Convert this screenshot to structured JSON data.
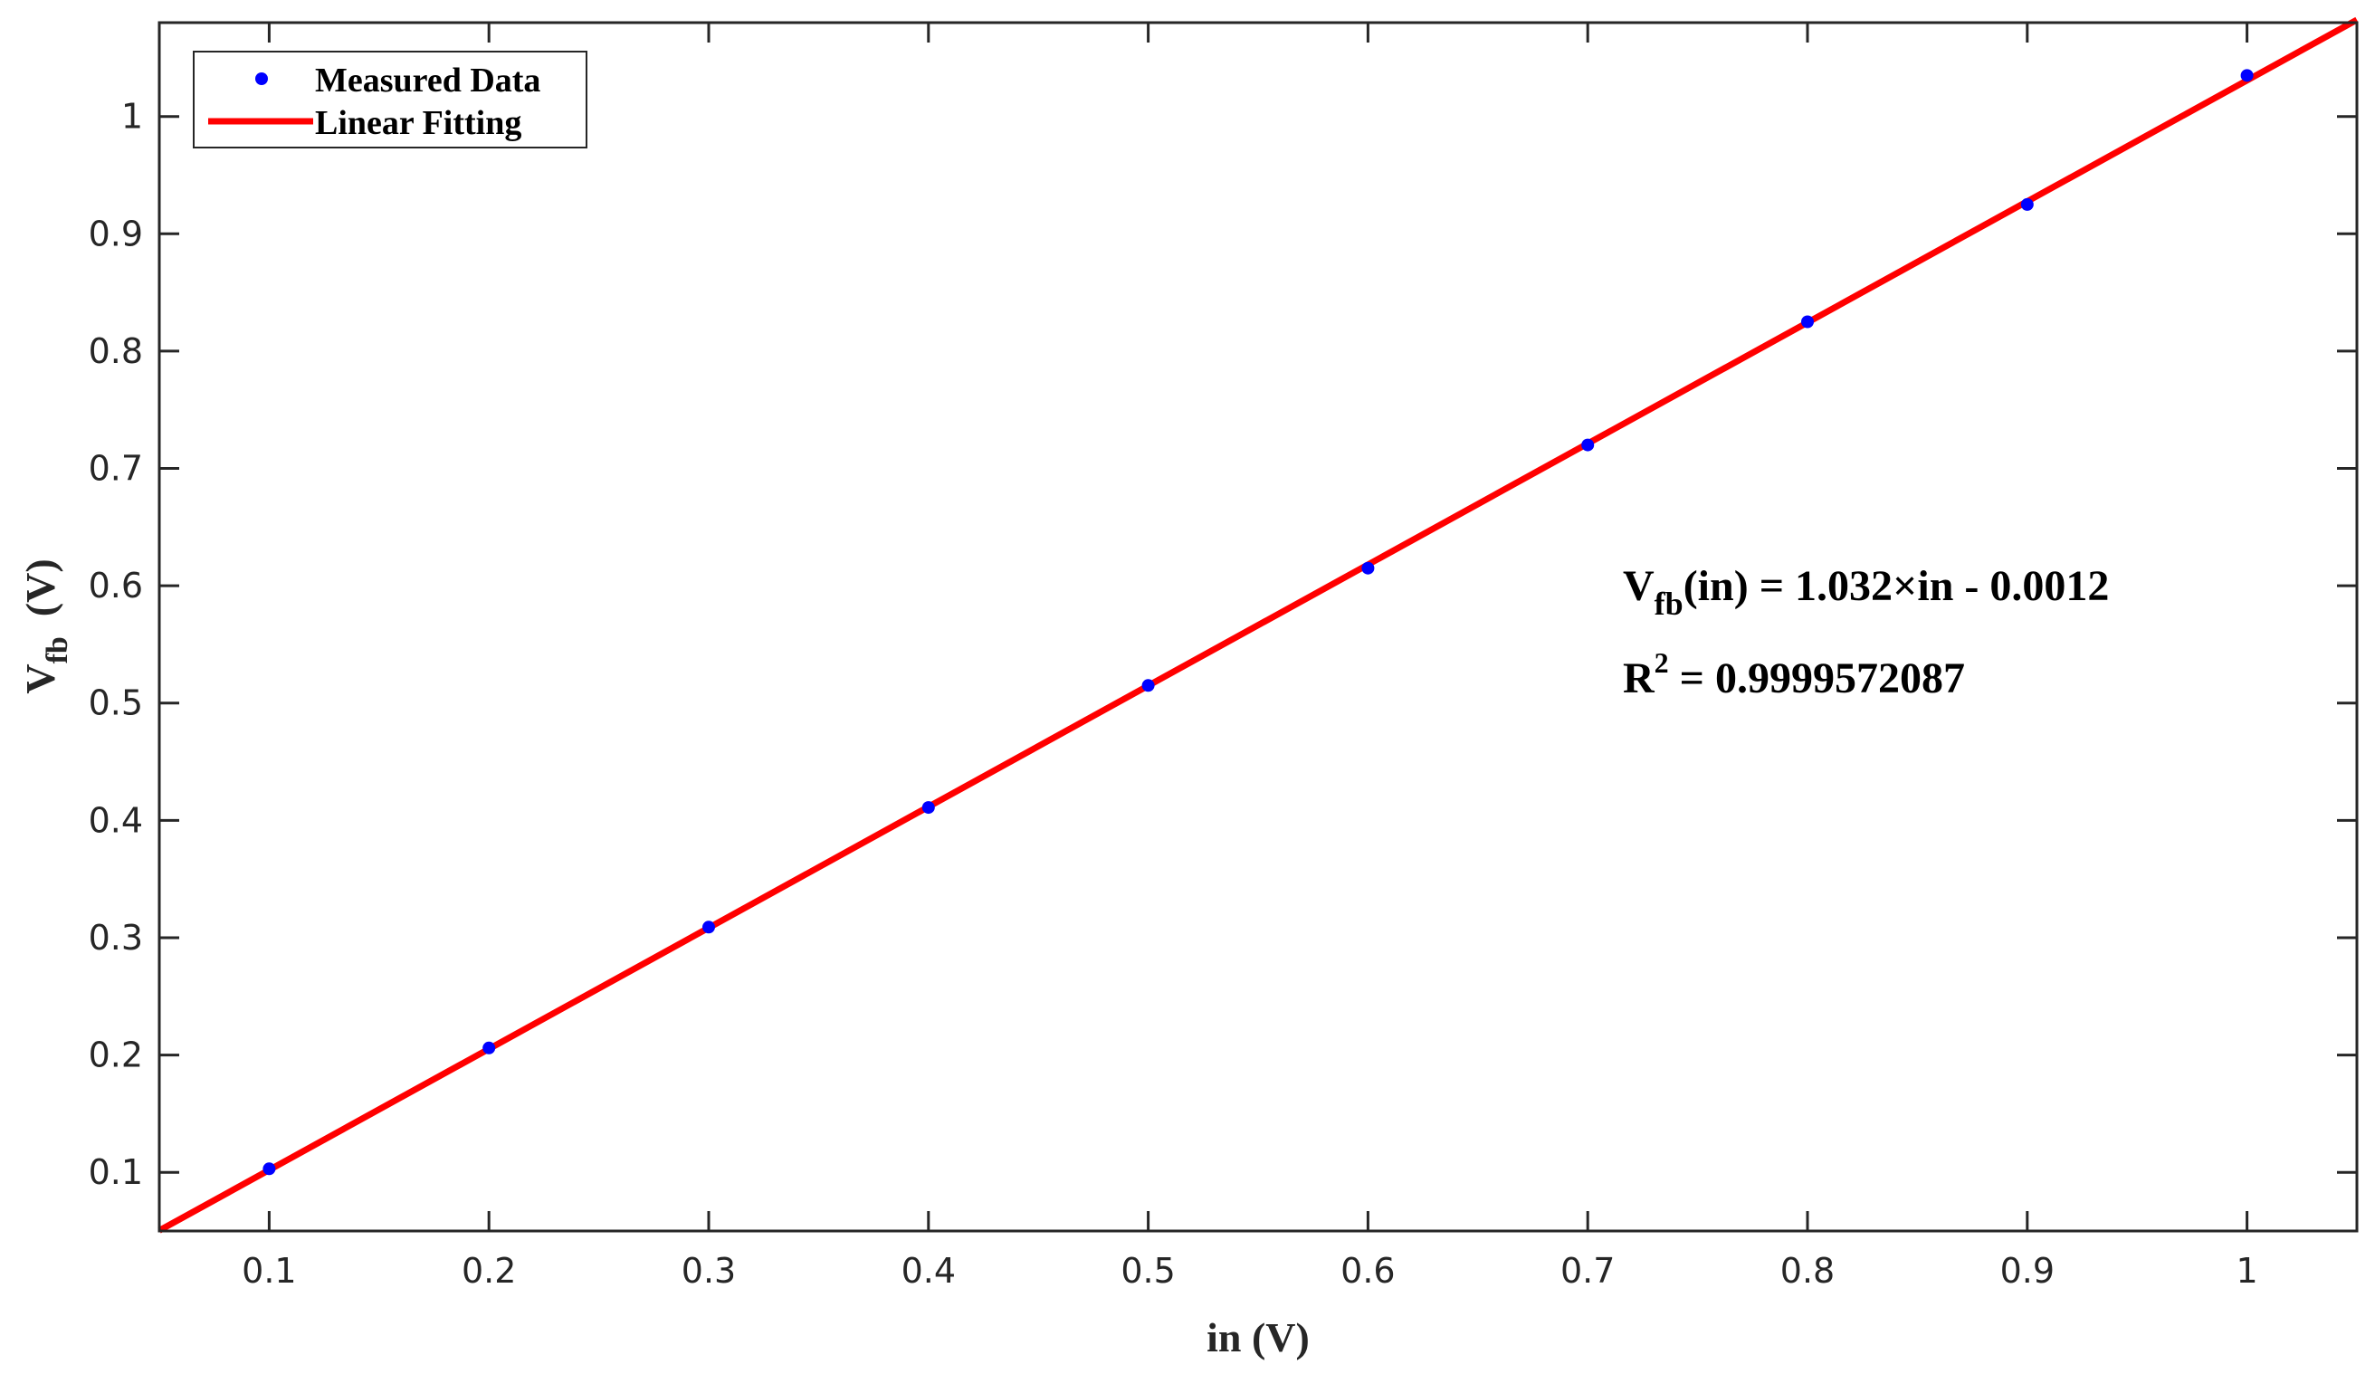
{
  "chart_data": {
    "type": "scatter",
    "xlabel": "in (V)",
    "ylabel": {
      "main": "V",
      "sub": "fb",
      "unit": "(V)"
    },
    "xlim": [
      0.05,
      1.05
    ],
    "ylim": [
      0.05,
      1.08
    ],
    "xticks": [
      0.1,
      0.2,
      0.3,
      0.4,
      0.5,
      0.6,
      0.7,
      0.8,
      0.9,
      1.0
    ],
    "xtick_labels": [
      "0.1",
      "0.2",
      "0.3",
      "0.4",
      "0.5",
      "0.6",
      "0.7",
      "0.8",
      "0.9",
      "1"
    ],
    "yticks": [
      0.1,
      0.2,
      0.3,
      0.4,
      0.5,
      0.6,
      0.7,
      0.8,
      0.9,
      1.0
    ],
    "ytick_labels": [
      "0.1",
      "0.2",
      "0.3",
      "0.4",
      "0.5",
      "0.6",
      "0.7",
      "0.8",
      "0.9",
      "1"
    ],
    "grid": false,
    "legend_position": "top-left",
    "series": [
      {
        "name": "Measured Data",
        "kind": "scatter",
        "color": "#0000ff",
        "x": [
          0.1,
          0.2,
          0.3,
          0.4,
          0.5,
          0.6,
          0.7,
          0.8,
          0.9,
          1.0
        ],
        "y": [
          0.103,
          0.206,
          0.309,
          0.411,
          0.515,
          0.615,
          0.72,
          0.825,
          0.925,
          1.035
        ]
      },
      {
        "name": "Linear Fitting",
        "kind": "line",
        "color": "#ff0000",
        "slope": 1.032,
        "intercept": -0.0012
      }
    ],
    "annotations": {
      "equation": {
        "lhs_main": "V",
        "lhs_sub": "fb",
        "rhs": "(in) = 1.032×in - 0.0012"
      },
      "r_squared": {
        "main": "R",
        "sup": "2",
        "rhs": " = 0.9999572087"
      }
    }
  }
}
